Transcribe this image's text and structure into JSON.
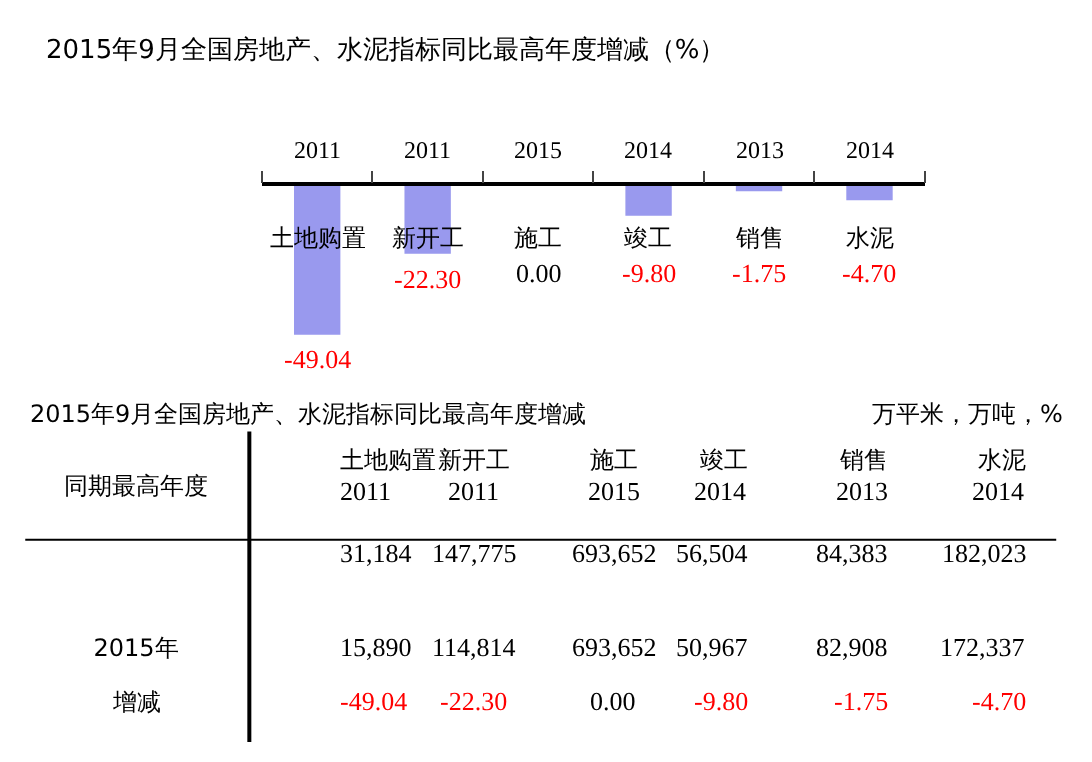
{
  "chart_data": [
    {
      "type": "bar",
      "title": "2015年9月全国房地产、水泥指标同比最高年度增减（%）",
      "categories": [
        "土地购置",
        "新开工",
        "施工",
        "竣工",
        "销售",
        "水泥"
      ],
      "values": [
        -49.04,
        -22.3,
        0.0,
        -9.8,
        -1.75,
        -4.7
      ],
      "color": "#9999ee",
      "value_labels": [
        "-49.04",
        "-22.30",
        "0.00",
        "-9.80",
        "-1.75",
        "-4.70"
      ],
      "annotations": [
        "2011",
        "2011",
        "2015",
        "2014",
        "2013",
        "2014"
      ]
    },
    {
      "type": "other",
      "title": "2015年9月全国房地产、水泥指标同比最高年度增减",
      "subtitle": "万平米，万吨，%",
      "categories": [
        "土地购置",
        "新开工",
        "施工",
        "竣工",
        "销售",
        "水泥"
      ],
      "annotations": [
        "同期最高年度",
        "2011",
        "2011",
        "2015",
        "2014",
        "2013",
        "2014",
        "31,184",
        "147,775",
        "693,652",
        "56,504",
        "84,383",
        "182,023",
        "2015年",
        "15,890",
        "114,814",
        "693,652",
        "50,967",
        "82,908",
        "172,337",
        "增减",
        "-49.04",
        "-22.30",
        "0.00",
        "-9.80",
        "-1.75",
        "-4.70"
      ]
    }
  ]
}
